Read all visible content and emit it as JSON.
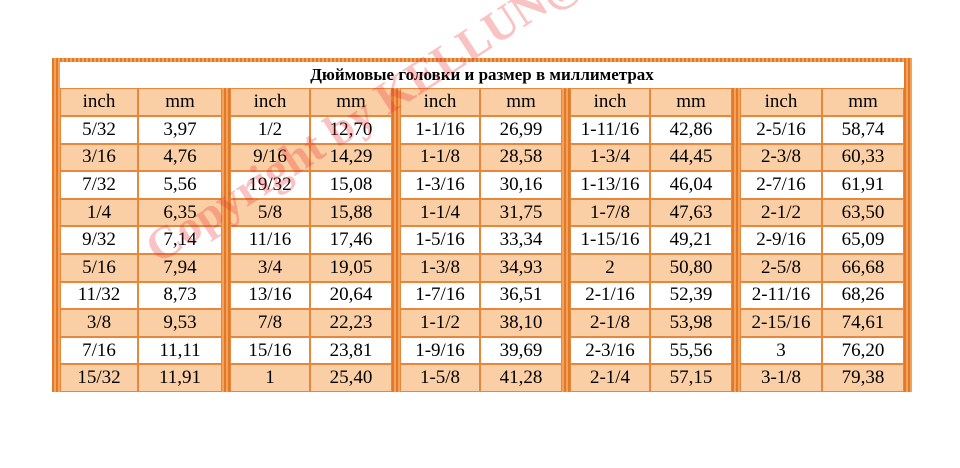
{
  "title": "Дюймовые головки и размер в миллиметрах",
  "table": {
    "header": [
      "inch",
      "mm",
      "inch",
      "mm",
      "inch",
      "mm",
      "inch",
      "mm",
      "inch",
      "mm"
    ],
    "rows": [
      [
        "5/32",
        "3,97",
        "1/2",
        "12,70",
        "1-1/16",
        "26,99",
        "1-11/16",
        "42,86",
        "2-5/16",
        "58,74"
      ],
      [
        "3/16",
        "4,76",
        "9/16",
        "14,29",
        "1-1/8",
        "28,58",
        "1-3/4",
        "44,45",
        "2-3/8",
        "60,33"
      ],
      [
        "7/32",
        "5,56",
        "19/32",
        "15,08",
        "1-3/16",
        "30,16",
        "1-13/16",
        "46,04",
        "2-7/16",
        "61,91"
      ],
      [
        "1/4",
        "6,35",
        "5/8",
        "15,88",
        "1-1/4",
        "31,75",
        "1-7/8",
        "47,63",
        "2-1/2",
        "63,50"
      ],
      [
        "9/32",
        "7,14",
        "11/16",
        "17,46",
        "1-5/16",
        "33,34",
        "1-15/16",
        "49,21",
        "2-9/16",
        "65,09"
      ],
      [
        "5/16",
        "7,94",
        "3/4",
        "19,05",
        "1-3/8",
        "34,93",
        "2",
        "50,80",
        "2-5/8",
        "66,68"
      ],
      [
        "11/32",
        "8,73",
        "13/16",
        "20,64",
        "1-7/16",
        "36,51",
        "2-1/16",
        "52,39",
        "2-11/16",
        "68,26"
      ],
      [
        "3/8",
        "9,53",
        "7/8",
        "22,23",
        "1-1/2",
        "38,10",
        "2-1/8",
        "53,98",
        "2-15/16",
        "74,61"
      ],
      [
        "7/16",
        "11,11",
        "15/16",
        "23,81",
        "1-9/16",
        "39,69",
        "2-3/16",
        "55,56",
        "3",
        "76,20"
      ],
      [
        "15/32",
        "11,91",
        "1",
        "25,40",
        "1-5/8",
        "41,28",
        "2-1/4",
        "57,15",
        "3-1/8",
        "79,38"
      ]
    ]
  },
  "watermark": "Copyright by KELLUN@MAIL.RU"
}
